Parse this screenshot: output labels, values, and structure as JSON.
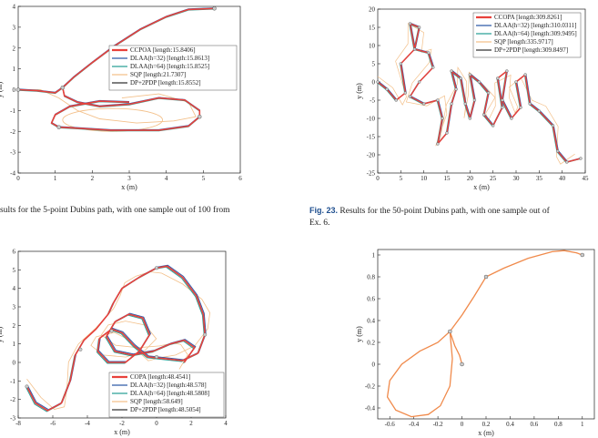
{
  "captions": {
    "left_top": "sults for the 5-point Dubins path, with one sample out of 100 from",
    "right_top_label": "Fig. 23.",
    "right_top_text": "Results for the 50-point Dubins path, with one sample out of",
    "right_top_cont": "Ex. 6."
  },
  "colors": {
    "ccpoa": "#e8413b",
    "dlaa32": "#2f5aa8",
    "dlaa64": "#2aa198",
    "sqp": "#f3c08a",
    "dp2pdp": "#333333",
    "single": "#f08a4b"
  },
  "chart_data": [
    {
      "type": "line",
      "panel": "top-left",
      "xlabel": "x (m)",
      "ylabel": "y (m)",
      "xlim": [
        0,
        6
      ],
      "ylim": [
        -4,
        4
      ],
      "xticks": [
        "0",
        "1",
        "2",
        "3",
        "4",
        "5",
        "6"
      ],
      "yticks": [
        "-4",
        "-3",
        "-2",
        "-1",
        "0",
        "1",
        "2",
        "3",
        "4"
      ],
      "legend": [
        "CCPOA [length:15.8406]",
        "DLAA(h=32) [length:15.8613]",
        "DLAA(h=64) [length:15.8525]",
        "SQP [length:21.7307]",
        "DP+2PDP [length:15.8552]"
      ],
      "legend_position": "top-right",
      "waypoints": [
        [
          0,
          0
        ],
        [
          1.2,
          0.1
        ],
        [
          4.9,
          -1.3
        ],
        [
          1.1,
          -1.8
        ],
        [
          5.3,
          3.9
        ]
      ]
    },
    {
      "type": "line",
      "panel": "top-right",
      "xlabel": "x (m)",
      "ylabel": "y (m)",
      "xlim": [
        0,
        45
      ],
      "ylim": [
        -25,
        20
      ],
      "xticks": [
        "0",
        "5",
        "10",
        "15",
        "20",
        "25",
        "30",
        "35",
        "40",
        "45"
      ],
      "yticks": [
        "-25",
        "-20",
        "-15",
        "-10",
        "-5",
        "0",
        "5",
        "10",
        "15",
        "20"
      ],
      "legend": [
        "CCOPA [length:309.8261]",
        "DLAA(h=32) [length:310.0311]",
        "DLAA(h=64) [length:309.9495]",
        "SQP [length:335.9717]",
        "DP+2PDP [length:309.8497]"
      ],
      "legend_position": "top-right"
    },
    {
      "type": "line",
      "panel": "bottom-left",
      "xlabel": "x (m)",
      "ylabel": "y (m)",
      "xlim": [
        -8,
        4
      ],
      "ylim": [
        -3,
        6
      ],
      "xticks": [
        "-8",
        "-6",
        "-4",
        "-2",
        "0",
        "2",
        "4"
      ],
      "yticks": [
        "-3",
        "-2",
        "-1",
        "0",
        "1",
        "2",
        "3",
        "4",
        "5",
        "6"
      ],
      "legend": [
        "COPA [length:48.4541]",
        "DLAA(h=32) [length:48.578]",
        "DLAA(h=64) [length:48.5808]",
        "SQP [length:58.649]",
        "DP+2PDP [length:48.5054]"
      ],
      "legend_position": "bottom-right"
    },
    {
      "type": "line",
      "panel": "bottom-right",
      "xlabel": "x (m)",
      "ylabel": "y (m)",
      "xlim": [
        -0.7,
        1.1
      ],
      "ylim": [
        -0.5,
        1.05
      ],
      "xticks": [
        "-0.6",
        "-0.4",
        "-0.2",
        "0",
        "0.2",
        "0.4",
        "0.6",
        "0.8",
        "1"
      ],
      "yticks": [
        "-0.4",
        "-0.2",
        "0",
        "0.2",
        "0.4",
        "0.6",
        "0.8",
        "1"
      ],
      "waypoints": [
        [
          0,
          0
        ],
        [
          -0.1,
          0.3
        ],
        [
          0.2,
          0.8
        ],
        [
          1,
          1
        ]
      ]
    }
  ]
}
